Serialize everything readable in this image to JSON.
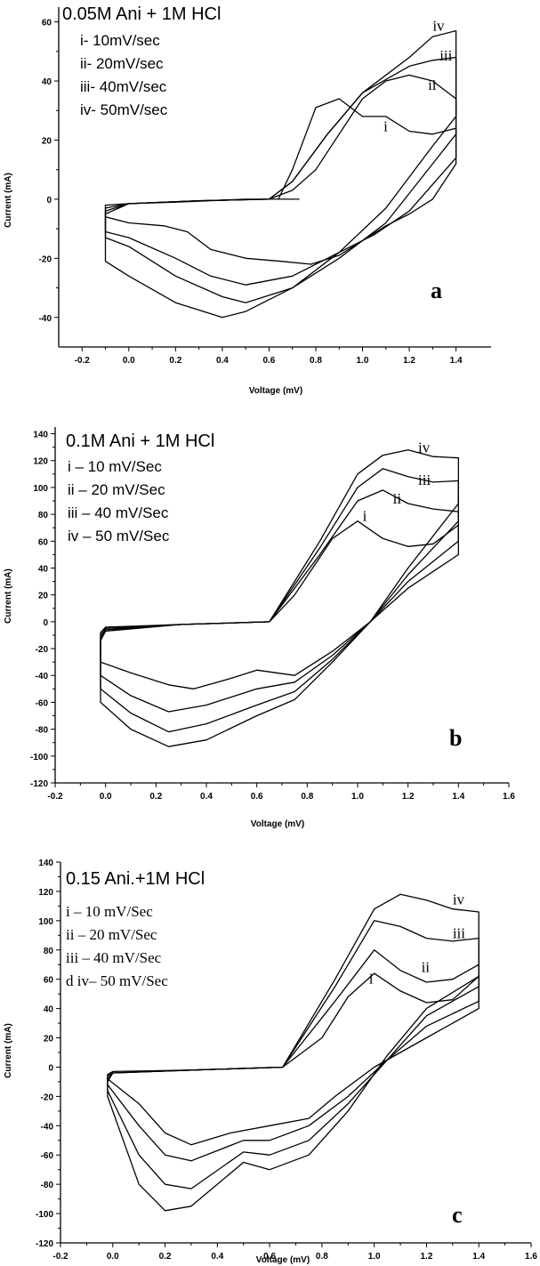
{
  "chart_data": [
    {
      "panel": "a",
      "type": "line",
      "title": "0.05M Ani + 1M HCl",
      "xlabel": "Voltage (mV)",
      "ylabel": "Current (mA)",
      "xlim": [
        -0.3,
        1.55
      ],
      "ylim": [
        -50,
        65
      ],
      "xticks": [
        -0.2,
        0.0,
        0.2,
        0.4,
        0.6,
        0.8,
        1.0,
        1.2,
        1.4
      ],
      "xtick_labels": [
        "-0.2",
        "0.0",
        "0.2",
        "0.4",
        "0.6",
        "0.8",
        "1.0",
        "1.2",
        "1.4"
      ],
      "yticks": [
        -40,
        -20,
        0,
        20,
        40,
        60
      ],
      "ytick_labels": [
        "-40",
        "-20",
        "0",
        "20",
        "40",
        "60"
      ],
      "legend_style": "sans",
      "legend": [
        "i-  10mV/sec",
        "ii-  20mV/sec",
        "iii-  40mV/sec",
        "iv-  50mV/sec"
      ],
      "panel_letter": "a",
      "series": [
        {
          "label": "i",
          "label_at": [
            1.09,
            23
          ],
          "x": [
            0.73,
            0.66,
            0.5,
            0.2,
            0.0,
            -0.1,
            -0.1,
            0.0,
            0.15,
            0.25,
            0.35,
            0.5,
            0.65,
            0.78,
            0.9,
            1.0,
            1.1,
            1.2,
            1.3,
            1.4,
            1.4,
            1.3,
            1.2,
            1.1,
            1.0,
            0.9,
            0.8,
            0.7,
            0.64
          ],
          "y": [
            0,
            0,
            0,
            -1,
            -1.5,
            -2,
            -6,
            -8,
            -9,
            -11,
            -17,
            -20,
            -21,
            -22,
            -19,
            -14,
            -9,
            -5,
            0,
            12,
            24,
            22,
            23,
            28,
            28,
            34,
            31,
            10,
            0
          ]
        },
        {
          "label": "ii",
          "label_at": [
            1.28,
            37
          ],
          "x": [
            0.6,
            0.3,
            0.0,
            -0.1,
            -0.1,
            0.0,
            0.2,
            0.35,
            0.5,
            0.7,
            0.9,
            1.05,
            1.2,
            1.3,
            1.4,
            1.4,
            1.3,
            1.2,
            1.1,
            1.0,
            0.9,
            0.8,
            0.7,
            0.6
          ],
          "y": [
            0,
            -0.5,
            -1.5,
            -3,
            -11,
            -13,
            -20,
            -26,
            -29,
            -26,
            -18,
            -12,
            -4,
            5,
            14,
            34,
            40,
            42,
            40,
            34,
            22,
            10,
            3,
            0
          ]
        },
        {
          "label": "iii",
          "label_at": [
            1.33,
            47
          ],
          "x": [
            0.6,
            0.3,
            0.0,
            -0.1,
            -0.1,
            0.0,
            0.2,
            0.4,
            0.5,
            0.7,
            0.9,
            1.1,
            1.3,
            1.4,
            1.4,
            1.3,
            1.2,
            1.0,
            0.85,
            0.7,
            0.6
          ],
          "y": [
            0,
            -0.5,
            -1.5,
            -4,
            -13,
            -16,
            -26,
            -33,
            -35,
            -30,
            -20,
            -8,
            12,
            22,
            48,
            47,
            45,
            36,
            22,
            6,
            0
          ]
        },
        {
          "label": "iv",
          "label_at": [
            1.3,
            57
          ],
          "x": [
            0.6,
            0.3,
            0.0,
            -0.1,
            -0.1,
            0.0,
            0.2,
            0.4,
            0.5,
            0.7,
            0.9,
            1.1,
            1.3,
            1.4,
            1.4,
            1.3,
            1.2,
            1.0,
            0.85,
            0.7,
            0.6
          ],
          "y": [
            0,
            -0.5,
            -1.5,
            -5,
            -21,
            -26,
            -35,
            -40,
            -38,
            -30,
            -18,
            -3,
            18,
            28,
            57,
            55,
            48,
            36,
            22,
            6,
            0
          ]
        }
      ]
    },
    {
      "panel": "b",
      "type": "line",
      "title": "0.1M Ani + 1M HCl",
      "xlabel": "Voltage (mV)",
      "ylabel": "Current (mA)",
      "xlim": [
        -0.2,
        1.6
      ],
      "ylim": [
        -120,
        145
      ],
      "xticks": [
        -0.2,
        0.0,
        0.2,
        0.4,
        0.6,
        0.8,
        1.0,
        1.2,
        1.4,
        1.6
      ],
      "xtick_labels": [
        "-0.2",
        "0.0",
        "0.2",
        "0.4",
        "0.6",
        "0.8",
        "1.0",
        "1.2",
        "1.4",
        "1.6"
      ],
      "yticks": [
        -120,
        -100,
        -80,
        -60,
        -40,
        -20,
        0,
        20,
        40,
        60,
        80,
        100,
        120,
        140
      ],
      "ytick_labels": [
        "-120",
        "-100",
        "-80",
        "-60",
        "-40",
        "-20",
        "0",
        "20",
        "40",
        "60",
        "80",
        "100",
        "120",
        "140"
      ],
      "legend_style": "sans",
      "legend": [
        "i – 10 mV/Sec",
        "ii – 20 mV/Sec",
        "iii – 40 mV/Sec",
        "iv – 50 mV/Sec"
      ],
      "panel_letter": "b",
      "series": [
        {
          "label": "i",
          "label_at": [
            1.02,
            75
          ],
          "x": [
            0.65,
            0.3,
            0.0,
            -0.02,
            -0.02,
            0.1,
            0.25,
            0.35,
            0.5,
            0.6,
            0.75,
            0.9,
            1.05,
            1.2,
            1.4,
            1.4,
            1.3,
            1.2,
            1.1,
            1.0,
            0.9,
            0.75,
            0.65
          ],
          "y": [
            0,
            -2,
            -4,
            -8,
            -30,
            -38,
            -47,
            -50,
            -42,
            -36,
            -40,
            -22,
            0,
            25,
            50,
            72,
            58,
            56,
            62,
            75,
            62,
            20,
            0
          ]
        },
        {
          "label": "ii",
          "label_at": [
            1.14,
            88
          ],
          "x": [
            0.65,
            0.3,
            0.0,
            -0.02,
            -0.02,
            0.1,
            0.25,
            0.4,
            0.6,
            0.75,
            0.9,
            1.05,
            1.2,
            1.4,
            1.4,
            1.3,
            1.2,
            1.1,
            1.0,
            0.85,
            0.65
          ],
          "y": [
            0,
            -2,
            -5,
            -10,
            -40,
            -55,
            -67,
            -62,
            -50,
            -45,
            -25,
            0,
            30,
            60,
            82,
            84,
            88,
            98,
            90,
            50,
            0
          ]
        },
        {
          "label": "iii",
          "label_at": [
            1.24,
            102
          ],
          "x": [
            0.65,
            0.3,
            0.0,
            -0.02,
            -0.02,
            0.1,
            0.25,
            0.4,
            0.6,
            0.75,
            0.9,
            1.05,
            1.2,
            1.4,
            1.4,
            1.3,
            1.2,
            1.1,
            1.0,
            0.85,
            0.65
          ],
          "y": [
            0,
            -2,
            -6,
            -12,
            -50,
            -68,
            -82,
            -76,
            -62,
            -52,
            -28,
            0,
            35,
            75,
            105,
            104,
            108,
            114,
            100,
            55,
            0
          ]
        },
        {
          "label": "iv",
          "label_at": [
            1.24,
            126
          ],
          "x": [
            0.65,
            0.3,
            0.0,
            -0.02,
            -0.02,
            0.1,
            0.25,
            0.4,
            0.6,
            0.75,
            0.9,
            1.05,
            1.2,
            1.4,
            1.4,
            1.3,
            1.2,
            1.1,
            1.0,
            0.85,
            0.65
          ],
          "y": [
            0,
            -2,
            -7,
            -14,
            -60,
            -80,
            -93,
            -88,
            -70,
            -58,
            -30,
            0,
            40,
            88,
            122,
            123,
            128,
            124,
            110,
            60,
            0
          ]
        }
      ]
    },
    {
      "panel": "c",
      "type": "line",
      "title": "0.15 Ani.+1M HCl",
      "xlabel": "Voltage (mV)",
      "ylabel": "Current (mA)",
      "xlim": [
        -0.2,
        1.6
      ],
      "ylim": [
        -120,
        140
      ],
      "xticks": [
        -0.2,
        0.0,
        0.2,
        0.4,
        0.6,
        0.8,
        1.0,
        1.2,
        1.4,
        1.6
      ],
      "xtick_labels": [
        "-0.2",
        "0.0",
        "0.2",
        "0.4",
        "0.6",
        "0.8",
        "1.0",
        "1.2",
        "1.4",
        "1.6"
      ],
      "yticks": [
        -120,
        -100,
        -80,
        -60,
        -40,
        -20,
        0,
        20,
        40,
        60,
        80,
        100,
        120,
        140
      ],
      "ytick_labels": [
        "-120",
        "-100",
        "-80",
        "-60",
        "-40",
        "-20",
        "0",
        "20",
        "40",
        "60",
        "80",
        "100",
        "120",
        "140"
      ],
      "legend_style": "serif",
      "legend": [
        "i – 10 mV/Sec",
        "ii – 20 mV/Sec",
        "iii – 40 mV/Sec",
        "d iv– 50 mV/Sec"
      ],
      "panel_letter": "c",
      "series": [
        {
          "label": "i",
          "label_at": [
            0.98,
            57
          ],
          "x": [
            0.65,
            0.3,
            0.0,
            -0.02,
            -0.02,
            0.1,
            0.2,
            0.3,
            0.45,
            0.6,
            0.75,
            0.85,
            1.0,
            1.2,
            1.4,
            1.4,
            1.3,
            1.2,
            1.1,
            1.0,
            0.9,
            0.8,
            0.65
          ],
          "y": [
            0,
            -2,
            -3,
            -5,
            -8,
            -25,
            -45,
            -53,
            -45,
            -40,
            -35,
            -20,
            0,
            20,
            40,
            62,
            46,
            44,
            52,
            64,
            48,
            20,
            0
          ]
        },
        {
          "label": "ii",
          "label_at": [
            1.18,
            65
          ],
          "x": [
            0.65,
            0.3,
            0.0,
            -0.02,
            -0.02,
            0.1,
            0.2,
            0.3,
            0.5,
            0.6,
            0.75,
            0.9,
            1.05,
            1.2,
            1.4,
            1.4,
            1.3,
            1.2,
            1.1,
            1.0,
            0.85,
            0.65
          ],
          "y": [
            0,
            -2,
            -4,
            -6,
            -12,
            -40,
            -60,
            -64,
            -50,
            -50,
            -40,
            -20,
            5,
            28,
            45,
            70,
            60,
            58,
            66,
            80,
            45,
            0
          ]
        },
        {
          "label": "iii",
          "label_at": [
            1.3,
            88
          ],
          "x": [
            0.65,
            0.3,
            0.0,
            -0.02,
            -0.02,
            0.1,
            0.2,
            0.3,
            0.5,
            0.6,
            0.75,
            0.9,
            1.05,
            1.2,
            1.4,
            1.4,
            1.3,
            1.2,
            1.1,
            1.0,
            0.85,
            0.65
          ],
          "y": [
            0,
            -2,
            -4,
            -8,
            -16,
            -60,
            -80,
            -83,
            -58,
            -60,
            -50,
            -25,
            5,
            35,
            55,
            88,
            86,
            88,
            96,
            100,
            55,
            0
          ]
        },
        {
          "label": "iv",
          "label_at": [
            1.3,
            111
          ],
          "x": [
            0.65,
            0.3,
            0.0,
            -0.02,
            -0.02,
            0.1,
            0.2,
            0.3,
            0.5,
            0.6,
            0.75,
            0.9,
            1.05,
            1.2,
            1.4,
            1.4,
            1.3,
            1.2,
            1.1,
            1.0,
            0.85,
            0.65
          ],
          "y": [
            0,
            -2,
            -4,
            -10,
            -20,
            -80,
            -98,
            -95,
            -65,
            -70,
            -60,
            -30,
            8,
            40,
            62,
            106,
            108,
            114,
            118,
            108,
            60,
            0
          ]
        }
      ]
    }
  ]
}
